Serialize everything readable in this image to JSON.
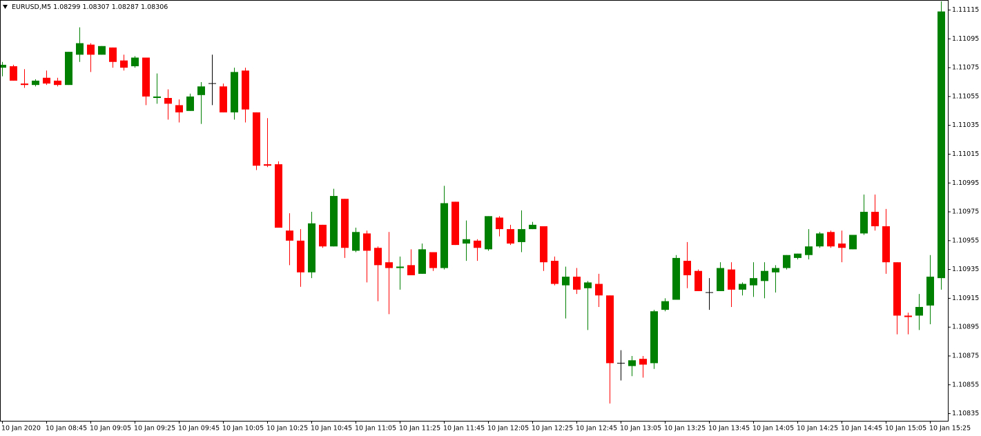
{
  "chart_data": {
    "type": "candlestick",
    "title": "EURUSD,M5  1.08299 1.08307 1.08287 1.08306",
    "categories": [
      "10 Jan 2020",
      null,
      null,
      null,
      "10 Jan 08:45",
      null,
      null,
      null,
      "10 Jan 09:05",
      null,
      null,
      null,
      "10 Jan 09:25",
      null,
      null,
      null,
      "10 Jan 09:45",
      null,
      null,
      null,
      "10 Jan 10:05",
      null,
      null,
      null,
      "10 Jan 10:25",
      null,
      null,
      null,
      "10 Jan 10:45",
      null,
      null,
      null,
      "10 Jan 11:05",
      null,
      null,
      null,
      "10 Jan 11:25",
      null,
      null,
      null,
      "10 Jan 11:45",
      null,
      null,
      null,
      "10 Jan 12:05",
      null,
      null,
      null,
      "10 Jan 12:25",
      null,
      null,
      null,
      "10 Jan 12:45",
      null,
      null,
      null,
      "10 Jan 13:05",
      null,
      null,
      null,
      "10 Jan 13:25",
      null,
      null,
      null,
      "10 Jan 13:45",
      null,
      null,
      null,
      "10 Jan 14:05",
      null,
      null,
      null,
      "10 Jan 14:25",
      null,
      null,
      null,
      "10 Jan 14:45",
      null,
      null,
      null,
      "10 Jan 15:05",
      null,
      null,
      null,
      "10 Jan 15:25",
      null
    ],
    "open": [
      1.11075,
      1.11076,
      1.11064,
      1.11063,
      1.11068,
      1.11066,
      1.11063,
      1.11084,
      1.11091,
      1.11084,
      1.11089,
      1.1108,
      1.11076,
      1.11082,
      1.11054,
      1.11054,
      1.11049,
      1.11045,
      1.11056,
      1.11064,
      1.11062,
      1.11044,
      1.11073,
      1.11044,
      1.11008,
      1.11008,
      1.10962,
      1.10955,
      1.10933,
      1.10966,
      1.10951,
      1.10984,
      1.10948,
      1.1096,
      1.1095,
      1.1094,
      1.10936,
      1.10938,
      1.10932,
      1.10947,
      1.10936,
      1.10982,
      1.10953,
      1.10955,
      1.10949,
      1.10971,
      1.10963,
      1.10954,
      1.10963,
      1.10965,
      1.10941,
      1.10924,
      1.1093,
      1.10922,
      1.10925,
      1.10917,
      1.1087,
      1.10868,
      1.10873,
      1.1087,
      1.10907,
      1.10914,
      1.10941,
      1.10934,
      1.10919,
      1.1092,
      1.10935,
      1.10921,
      1.10924,
      1.10927,
      1.10933,
      1.10936,
      1.10943,
      1.10945,
      1.10951,
      1.10961,
      1.10953,
      1.10949,
      1.1096,
      1.10975,
      1.10965,
      1.1094,
      1.10903,
      1.10903,
      1.1091,
      1.10929
    ],
    "high": [
      1.11079,
      1.11077,
      1.11074,
      1.11067,
      1.11073,
      1.11068,
      1.11086,
      1.11103,
      1.11092,
      1.1109,
      1.11089,
      1.11084,
      1.11083,
      1.11082,
      1.11071,
      1.1106,
      1.11053,
      1.11057,
      1.11065,
      1.11084,
      1.11064,
      1.11075,
      1.11075,
      1.11044,
      1.1104,
      1.1101,
      1.10974,
      1.10963,
      1.10975,
      1.10966,
      1.10991,
      1.10984,
      1.10964,
      1.10962,
      1.10951,
      1.10961,
      1.10944,
      1.10949,
      1.10953,
      1.10947,
      1.10993,
      1.10982,
      1.10969,
      1.10956,
      1.10972,
      1.10972,
      1.10966,
      1.10976,
      1.10968,
      1.10965,
      1.10944,
      1.10937,
      1.10936,
      1.10927,
      1.10932,
      1.10917,
      1.10879,
      1.10875,
      1.10875,
      1.10907,
      1.10915,
      1.10945,
      1.10954,
      1.10935,
      1.10929,
      1.1094,
      1.1094,
      1.10926,
      1.1094,
      1.1094,
      1.10938,
      1.10945,
      1.10946,
      1.10963,
      1.10961,
      1.10962,
      1.10962,
      1.10959,
      1.10987,
      1.10987,
      1.10977,
      1.1094,
      1.10905,
      1.10918,
      1.10945,
      1.11121
    ],
    "low": [
      1.11069,
      1.11066,
      1.11061,
      1.11062,
      1.11063,
      1.11062,
      1.11063,
      1.11079,
      1.11072,
      1.11084,
      1.11075,
      1.11073,
      1.11075,
      1.11049,
      1.1105,
      1.11039,
      1.11037,
      1.11045,
      1.11036,
      1.11049,
      1.11044,
      1.11039,
      1.11037,
      1.11004,
      1.11006,
      1.10964,
      1.10938,
      1.10923,
      1.10929,
      1.1095,
      1.10951,
      1.10943,
      1.10947,
      1.10926,
      1.10913,
      1.10904,
      1.10921,
      1.10931,
      1.10932,
      1.10934,
      1.10935,
      1.10952,
      1.10941,
      1.10941,
      1.10948,
      1.10958,
      1.10952,
      1.10947,
      1.10963,
      1.10934,
      1.10924,
      1.10901,
      1.10918,
      1.10893,
      1.10909,
      1.10842,
      1.10858,
      1.10861,
      1.1086,
      1.10866,
      1.10906,
      1.10914,
      1.10922,
      1.1092,
      1.10907,
      1.1092,
      1.10909,
      1.10917,
      1.10916,
      1.10915,
      1.10919,
      1.10935,
      1.10942,
      1.10942,
      1.1095,
      1.1095,
      1.1094,
      1.10949,
      1.10959,
      1.10962,
      1.10932,
      1.1089,
      1.1089,
      1.10893,
      1.10897,
      1.10921
    ],
    "close": [
      1.11077,
      1.11066,
      1.11063,
      1.11066,
      1.11064,
      1.11063,
      1.11086,
      1.11092,
      1.11084,
      1.1109,
      1.11079,
      1.11075,
      1.11082,
      1.11055,
      1.11055,
      1.1105,
      1.11044,
      1.11055,
      1.11062,
      1.11064,
      1.11044,
      1.11072,
      1.11046,
      1.11007,
      1.11007,
      1.10964,
      1.10955,
      1.10933,
      1.10967,
      1.10951,
      1.10986,
      1.1095,
      1.10961,
      1.10948,
      1.10938,
      1.10936,
      1.10937,
      1.10931,
      1.10949,
      1.10936,
      1.10981,
      1.10952,
      1.10956,
      1.1095,
      1.10972,
      1.10963,
      1.10953,
      1.10963,
      1.10966,
      1.1094,
      1.10925,
      1.1093,
      1.10921,
      1.10926,
      1.10917,
      1.1087,
      1.1087,
      1.10872,
      1.10869,
      1.10906,
      1.10913,
      1.10943,
      1.10931,
      1.1092,
      1.10919,
      1.10936,
      1.10921,
      1.10925,
      1.10929,
      1.10934,
      1.10936,
      1.10945,
      1.10946,
      1.10951,
      1.1096,
      1.10951,
      1.1095,
      1.10959,
      1.10975,
      1.10965,
      1.1094,
      1.10903,
      1.10902,
      1.10909,
      1.1093,
      1.11114
    ],
    "up_color": "#008000",
    "down_color": "#ff0000",
    "ylim": [
      1.1083,
      1.11121
    ],
    "yticks": [
      1.11115,
      1.11095,
      1.11075,
      1.11055,
      1.11035,
      1.11015,
      1.10995,
      1.10975,
      1.10955,
      1.10935,
      1.10915,
      1.10895,
      1.10875,
      1.10855,
      1.10835
    ]
  }
}
